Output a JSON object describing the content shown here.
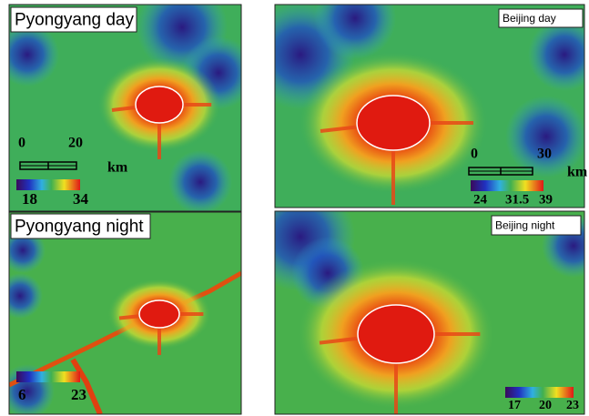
{
  "panels": [
    {
      "title": "Pyongyang day",
      "scale_labels": [
        "0",
        "20"
      ],
      "scale_unit": "km",
      "colorbar_labels": [
        "18",
        "34"
      ]
    },
    {
      "title": "Beijing day",
      "scale_labels": [
        "0",
        "30"
      ],
      "scale_unit": "km",
      "colorbar_labels": [
        "24",
        "31.5",
        "39"
      ]
    },
    {
      "title": "Pyongyang night",
      "colorbar_labels": [
        "6",
        "23"
      ]
    },
    {
      "title": "Beijing night",
      "colorbar_labels": [
        "17",
        "20",
        "23"
      ]
    }
  ]
}
